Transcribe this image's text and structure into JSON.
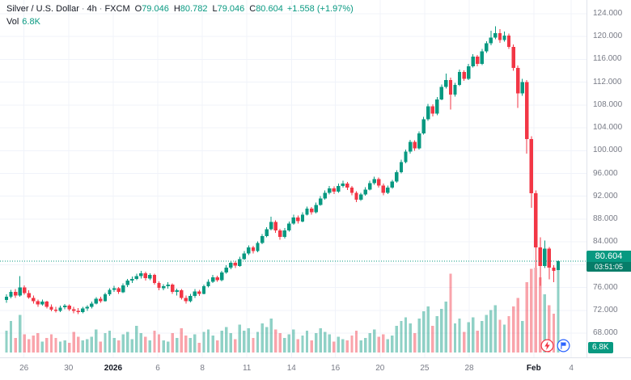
{
  "header": {
    "symbol": "Silver / U.S. Dollar",
    "separator": "·",
    "interval": "4h",
    "exchange": "FXCM",
    "ohlc": {
      "o_label": "O",
      "o": "79.046",
      "h_label": "H",
      "h": "80.782",
      "l_label": "L",
      "l": "79.046",
      "c_label": "C",
      "c": "80.604"
    },
    "change": "+1.558 (+1.97%)",
    "vol_label": "Vol",
    "vol_value": "6.8K"
  },
  "price_scale": {
    "ticks": [
      "124.000",
      "120.000",
      "116.000",
      "112.000",
      "108.000",
      "104.000",
      "100.000",
      "96.000",
      "92.000",
      "88.000",
      "84.000",
      "80.000",
      "76.000",
      "72.000",
      "68.000"
    ],
    "last_price": "80.604",
    "countdown": "03:51:05",
    "volume_badge": "6.8K"
  },
  "colors": {
    "up": "#089981",
    "down": "#f23645",
    "vol_up": "rgba(8,153,129,0.45)",
    "vol_down": "rgba(242,54,69,0.45)",
    "grid": "#f0f3fa",
    "axis_text": "#787b86",
    "text": "#131722",
    "accent_red": "#f23645",
    "accent_blue": "#2962ff"
  },
  "icons": {
    "alert": "lightning-bolt",
    "economic_calendar": "flag"
  },
  "chart_data": {
    "type": "candlestick+volume",
    "title": "Silver / U.S. Dollar, 4h, FXCM",
    "xlabel": "",
    "ylabel": "",
    "ylim": [
      63.7,
      126.4
    ],
    "grid": true,
    "yticks": [
      124,
      120,
      116,
      112,
      108,
      104,
      100,
      96,
      92,
      88,
      84,
      80,
      76,
      72,
      68
    ],
    "xticks": [
      {
        "label": "26",
        "f": 0.041,
        "bold": false
      },
      {
        "label": "30",
        "f": 0.117,
        "bold": false
      },
      {
        "label": "2026",
        "f": 0.193,
        "bold": true
      },
      {
        "label": "6",
        "f": 0.269,
        "bold": false
      },
      {
        "label": "8",
        "f": 0.345,
        "bold": false
      },
      {
        "label": "11",
        "f": 0.421,
        "bold": false
      },
      {
        "label": "14",
        "f": 0.497,
        "bold": false
      },
      {
        "label": "16",
        "f": 0.572,
        "bold": false
      },
      {
        "label": "20",
        "f": 0.648,
        "bold": false
      },
      {
        "label": "25",
        "f": 0.724,
        "bold": false
      },
      {
        "label": "28",
        "f": 0.8,
        "bold": false
      },
      {
        "label": "Feb",
        "f": 0.91,
        "bold": true
      },
      {
        "label": "4",
        "f": 0.974,
        "bold": false
      }
    ],
    "last_price": 80.604,
    "candles_format": [
      "open",
      "high",
      "low",
      "close",
      "volume_k"
    ],
    "candles": [
      [
        73.8,
        74.8,
        73.3,
        74.4,
        1.8
      ],
      [
        74.4,
        75.6,
        74.1,
        75.2,
        2.6
      ],
      [
        75.2,
        75.7,
        74.2,
        74.6,
        1.2
      ],
      [
        74.6,
        78.0,
        74.4,
        76.0,
        3.1
      ],
      [
        76.0,
        76.4,
        74.7,
        75.0,
        1.5
      ],
      [
        75.0,
        75.5,
        74.0,
        74.2,
        1.1
      ],
      [
        74.2,
        74.6,
        73.2,
        73.6,
        1.4
      ],
      [
        73.6,
        73.9,
        72.6,
        73.0,
        1.6
      ],
      [
        73.0,
        73.9,
        72.8,
        73.5,
        0.9
      ],
      [
        73.5,
        73.7,
        72.3,
        72.6,
        1.2
      ],
      [
        72.6,
        73.0,
        71.8,
        72.1,
        1.5
      ],
      [
        72.1,
        72.6,
        71.6,
        71.9,
        1.2
      ],
      [
        71.9,
        72.8,
        71.7,
        72.5,
        0.9
      ],
      [
        72.5,
        73.1,
        72.2,
        72.8,
        1.0
      ],
      [
        72.8,
        73.0,
        71.9,
        72.2,
        0.8
      ],
      [
        72.2,
        72.6,
        71.5,
        71.9,
        1.7
      ],
      [
        71.9,
        72.4,
        71.3,
        71.7,
        1.3
      ],
      [
        71.7,
        72.6,
        71.5,
        72.3,
        1.0
      ],
      [
        72.3,
        72.9,
        71.9,
        72.6,
        1.1
      ],
      [
        72.6,
        73.5,
        72.3,
        73.2,
        1.3
      ],
      [
        73.2,
        74.3,
        73.0,
        74.0,
        1.9
      ],
      [
        74.0,
        74.4,
        73.3,
        73.6,
        0.9
      ],
      [
        73.6,
        75.1,
        73.5,
        74.8,
        1.6
      ],
      [
        74.8,
        75.9,
        74.5,
        75.6,
        1.8
      ],
      [
        75.6,
        76.3,
        75.2,
        75.9,
        1.2
      ],
      [
        75.9,
        76.1,
        74.9,
        75.2,
        1.0
      ],
      [
        75.2,
        76.7,
        75.0,
        76.4,
        1.5
      ],
      [
        76.4,
        77.5,
        76.1,
        77.2,
        1.7
      ],
      [
        77.2,
        77.9,
        76.8,
        77.5,
        1.1
      ],
      [
        77.5,
        78.4,
        77.3,
        78.0,
        2.2
      ],
      [
        78.0,
        78.9,
        77.6,
        78.5,
        1.6
      ],
      [
        78.5,
        78.8,
        77.2,
        77.6,
        1.3
      ],
      [
        77.6,
        78.5,
        77.3,
        78.2,
        1.0
      ],
      [
        78.2,
        78.4,
        76.5,
        76.8,
        1.8
      ],
      [
        76.8,
        77.1,
        75.5,
        75.9,
        1.5
      ],
      [
        75.9,
        76.6,
        75.5,
        76.2,
        1.0
      ],
      [
        76.2,
        76.9,
        75.8,
        76.5,
        0.9
      ],
      [
        76.5,
        76.7,
        74.9,
        75.2,
        1.6
      ],
      [
        75.2,
        75.8,
        74.6,
        75.5,
        1.2
      ],
      [
        75.5,
        75.7,
        73.9,
        74.2,
        2.0
      ],
      [
        74.2,
        74.6,
        73.2,
        73.6,
        1.4
      ],
      [
        73.6,
        74.9,
        73.4,
        74.5,
        1.2
      ],
      [
        74.5,
        75.7,
        74.2,
        75.3,
        1.5
      ],
      [
        75.3,
        75.6,
        74.5,
        74.9,
        0.8
      ],
      [
        74.9,
        76.5,
        74.8,
        76.2,
        1.7
      ],
      [
        76.2,
        77.4,
        76.0,
        77.0,
        1.9
      ],
      [
        77.0,
        78.2,
        76.8,
        77.8,
        1.4
      ],
      [
        77.8,
        78.1,
        77.0,
        77.3,
        1.0
      ],
      [
        77.3,
        78.9,
        77.1,
        78.6,
        1.8
      ],
      [
        78.6,
        79.9,
        78.4,
        79.5,
        2.1
      ],
      [
        79.5,
        80.7,
        79.2,
        80.3,
        1.6
      ],
      [
        80.3,
        80.6,
        79.4,
        79.8,
        1.1
      ],
      [
        79.8,
        81.4,
        79.6,
        81.0,
        2.3
      ],
      [
        81.0,
        82.4,
        80.8,
        82.0,
        1.8
      ],
      [
        82.0,
        83.4,
        81.7,
        83.0,
        2.0
      ],
      [
        83.0,
        83.3,
        82.0,
        82.4,
        1.2
      ],
      [
        82.4,
        84.1,
        82.2,
        83.8,
        1.7
      ],
      [
        83.8,
        85.4,
        83.6,
        85.0,
        2.4
      ],
      [
        85.0,
        86.6,
        84.8,
        86.2,
        2.1
      ],
      [
        86.2,
        88.4,
        86.0,
        87.5,
        2.8
      ],
      [
        87.5,
        87.8,
        85.6,
        86.0,
        1.9
      ],
      [
        86.0,
        86.3,
        84.4,
        84.9,
        1.6
      ],
      [
        84.9,
        86.4,
        84.6,
        86.0,
        1.2
      ],
      [
        86.0,
        87.6,
        85.8,
        87.2,
        1.5
      ],
      [
        87.2,
        88.8,
        87.0,
        88.3,
        1.9
      ],
      [
        88.3,
        88.6,
        87.2,
        87.6,
        1.1
      ],
      [
        87.6,
        89.2,
        87.4,
        88.8,
        1.4
      ],
      [
        88.8,
        90.2,
        88.6,
        89.8,
        1.8
      ],
      [
        89.8,
        90.1,
        88.8,
        89.2,
        1.0
      ],
      [
        89.2,
        90.9,
        89.0,
        90.5,
        1.6
      ],
      [
        90.5,
        92.0,
        90.3,
        91.6,
        2.0
      ],
      [
        91.6,
        93.0,
        91.4,
        92.6,
        1.7
      ],
      [
        92.6,
        93.8,
        92.3,
        93.4,
        1.5
      ],
      [
        93.4,
        93.7,
        92.4,
        92.8,
        0.9
      ],
      [
        92.8,
        94.2,
        92.6,
        93.8,
        1.3
      ],
      [
        93.8,
        94.7,
        93.5,
        94.2,
        1.1
      ],
      [
        94.2,
        94.5,
        93.1,
        93.5,
        1.0
      ],
      [
        93.5,
        93.8,
        92.2,
        92.6,
        1.4
      ],
      [
        92.6,
        92.9,
        91.0,
        91.4,
        1.8
      ],
      [
        91.4,
        92.6,
        91.2,
        92.3,
        1.0
      ],
      [
        92.3,
        93.6,
        92.1,
        93.2,
        1.2
      ],
      [
        93.2,
        94.7,
        93.0,
        94.3,
        1.6
      ],
      [
        94.3,
        95.4,
        94.0,
        95.0,
        1.9
      ],
      [
        95.0,
        95.3,
        93.5,
        93.9,
        1.3
      ],
      [
        93.9,
        94.2,
        92.2,
        92.6,
        1.5
      ],
      [
        92.6,
        93.9,
        92.4,
        93.5,
        1.1
      ],
      [
        93.5,
        94.9,
        93.3,
        94.6,
        1.4
      ],
      [
        94.6,
        96.6,
        94.4,
        96.2,
        2.2
      ],
      [
        96.2,
        98.4,
        96.0,
        98.0,
        2.6
      ],
      [
        98.0,
        100.2,
        97.8,
        99.8,
        2.9
      ],
      [
        99.8,
        101.9,
        99.5,
        101.5,
        2.4
      ],
      [
        101.5,
        101.8,
        100.0,
        100.4,
        1.6
      ],
      [
        100.4,
        103.4,
        100.2,
        103.0,
        2.8
      ],
      [
        103.0,
        105.9,
        102.8,
        105.5,
        3.4
      ],
      [
        105.5,
        108.2,
        105.2,
        107.8,
        3.8
      ],
      [
        107.8,
        108.1,
        106.0,
        106.5,
        2.2
      ],
      [
        106.5,
        109.4,
        106.2,
        109.0,
        3.0
      ],
      [
        109.0,
        111.6,
        108.8,
        111.2,
        3.6
      ],
      [
        111.2,
        113.5,
        110.9,
        112.4,
        4.2
      ],
      [
        112.4,
        112.8,
        107.2,
        109.8,
        6.5
      ],
      [
        109.8,
        111.9,
        109.5,
        111.5,
        2.4
      ],
      [
        111.5,
        114.2,
        111.3,
        113.8,
        2.8
      ],
      [
        113.8,
        114.1,
        112.2,
        112.6,
        1.7
      ],
      [
        112.6,
        115.2,
        112.4,
        114.8,
        2.5
      ],
      [
        114.8,
        116.9,
        114.6,
        116.5,
        2.9
      ],
      [
        116.5,
        116.8,
        114.8,
        115.2,
        1.8
      ],
      [
        115.2,
        117.8,
        115.0,
        117.4,
        2.6
      ],
      [
        117.4,
        119.2,
        117.1,
        118.8,
        3.1
      ],
      [
        118.8,
        121.0,
        118.5,
        119.8,
        3.5
      ],
      [
        119.8,
        121.8,
        119.5,
        120.6,
        3.9
      ],
      [
        120.6,
        121.3,
        118.9,
        119.4,
        2.7
      ],
      [
        119.4,
        120.9,
        119.1,
        120.2,
        2.3
      ],
      [
        120.2,
        120.5,
        117.8,
        118.2,
        3.0
      ],
      [
        118.2,
        118.6,
        114.0,
        114.5,
        3.8
      ],
      [
        114.5,
        114.9,
        107.5,
        110.0,
        4.5
      ],
      [
        110.0,
        112.6,
        109.6,
        112.0,
        2.6
      ],
      [
        112.0,
        112.4,
        99.5,
        102.0,
        5.8
      ],
      [
        102.0,
        102.5,
        90.0,
        92.5,
        6.9
      ],
      [
        92.5,
        93.0,
        79.5,
        83.0,
        7.0
      ],
      [
        83.0,
        84.8,
        76.3,
        79.8,
        6.2
      ],
      [
        79.8,
        84.2,
        79.4,
        82.8,
        4.8
      ],
      [
        82.8,
        83.1,
        77.4,
        79.5,
        3.9
      ],
      [
        79.5,
        79.9,
        76.9,
        78.9,
        3.2
      ],
      [
        79.046,
        80.782,
        79.046,
        80.604,
        6.8
      ]
    ]
  }
}
